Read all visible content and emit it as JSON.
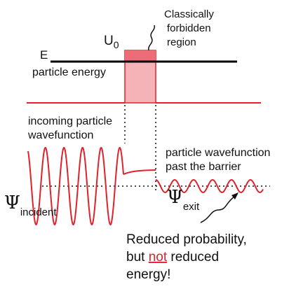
{
  "colors": {
    "wave": "#e0222c",
    "barrier_fill": "#f5b3b8",
    "barrier_top": "#ee6c78",
    "text": "#111111",
    "accent_underline": "#e0222c"
  },
  "labels": {
    "forbidden_line1": "Classically",
    "forbidden_line2": "forbidden",
    "forbidden_line3": "region",
    "barrier_height": "U",
    "barrier_height_sub": "0",
    "energy_symbol": "E",
    "particle_energy": "particle energy",
    "incoming_line1": "incoming particle",
    "incoming_line2": "wavefunction",
    "past_line1": "particle wavefunction",
    "past_line2": "past the barrier",
    "psi": "Ψ",
    "psi_incident_sub": "incident",
    "psi_exit_sub": "exit",
    "note_line1": "Reduced probability,",
    "note_line2_pre": "but ",
    "note_line2_emph": "not",
    "note_line2_post": " reduced",
    "note_line3": "energy!"
  }
}
